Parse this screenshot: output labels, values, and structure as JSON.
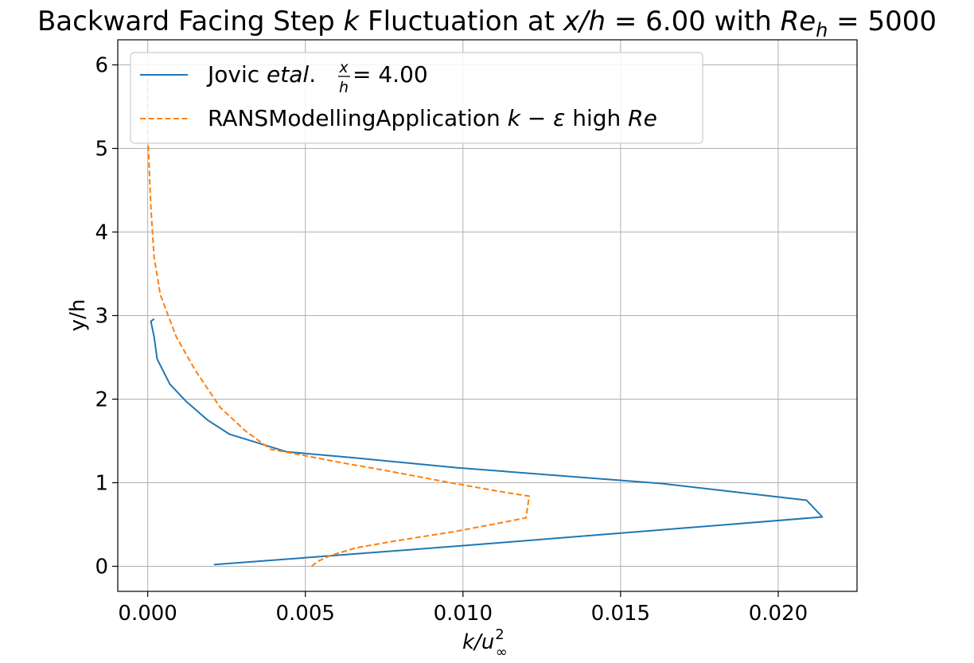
{
  "chart_data": {
    "type": "line",
    "title": "Backward Facing Step k Fluctuation at x/h = 6.00 with Re_h = 5000",
    "title_parts": {
      "prefix": "Backward Facing Step ",
      "k": "k",
      "mid1": " Fluctuation at ",
      "xh": "x/h",
      "eq1": " = 6.00 with ",
      "re": "Re",
      "re_sub": "h",
      "eq2": " = 5000"
    },
    "xlabel": "k/u∞²",
    "xlabel_parts": {
      "main": "k/u",
      "sub": "∞",
      "sup": "2"
    },
    "ylabel": "y/h",
    "xlim": [
      -0.00095,
      0.0225
    ],
    "ylim": [
      -0.3,
      6.3
    ],
    "xticks": [
      0.0,
      0.005,
      0.01,
      0.015,
      0.02
    ],
    "xtick_labels": [
      "0.000",
      "0.005",
      "0.010",
      "0.015",
      "0.020"
    ],
    "yticks": [
      0,
      1,
      2,
      3,
      4,
      5,
      6
    ],
    "ytick_labels": [
      "0",
      "1",
      "2",
      "3",
      "4",
      "5",
      "6"
    ],
    "grid": true,
    "legend_position": "top-left",
    "series": [
      {
        "name": "Jovic etal. x/h = 4.00",
        "legend_parts": {
          "prefix": "Jovic ",
          "italic": "etal",
          "dot": ". ",
          "frac_num": "x",
          "frac_den": "h",
          "suffix": " = 4.00"
        },
        "color": "#1f77b4",
        "style": "solid",
        "x": [
          0.0021,
          0.0056,
          0.0101,
          0.0151,
          0.0214,
          0.0209,
          0.0163,
          0.0098,
          0.0065,
          0.0044,
          0.0026,
          0.0019,
          0.0012,
          0.0007,
          0.0003,
          0.0002,
          0.0001,
          0.0002
        ],
        "y": [
          0.02,
          0.12,
          0.25,
          0.4,
          0.59,
          0.79,
          0.99,
          1.18,
          1.3,
          1.37,
          1.58,
          1.75,
          1.98,
          2.18,
          2.48,
          2.75,
          2.93,
          2.96
        ]
      },
      {
        "name": "RANSModellingApplication k − ε high Re",
        "legend_parts": {
          "prefix": "RANSModellingApplication ",
          "italic1": "k",
          "minus": " − ",
          "italic2": "ε",
          "mid": " high ",
          "italic3": "Re"
        },
        "color": "#ff7f0e",
        "style": "dashed",
        "x": [
          0.0052,
          0.0054,
          0.0058,
          0.0066,
          0.0078,
          0.0098,
          0.0112,
          0.012,
          0.0121,
          0.0114,
          0.0096,
          0.0075,
          0.006,
          0.0049,
          0.0039,
          0.0031,
          0.0023,
          0.0015,
          0.0009,
          0.0004,
          0.0002,
          0.0001,
          0.0,
          0.0
        ],
        "y": [
          0.0,
          0.06,
          0.13,
          0.22,
          0.3,
          0.42,
          0.52,
          0.58,
          0.84,
          0.88,
          1.0,
          1.15,
          1.25,
          1.33,
          1.4,
          1.62,
          1.9,
          2.35,
          2.75,
          3.25,
          3.7,
          4.3,
          5.2,
          5.9
        ]
      }
    ]
  }
}
